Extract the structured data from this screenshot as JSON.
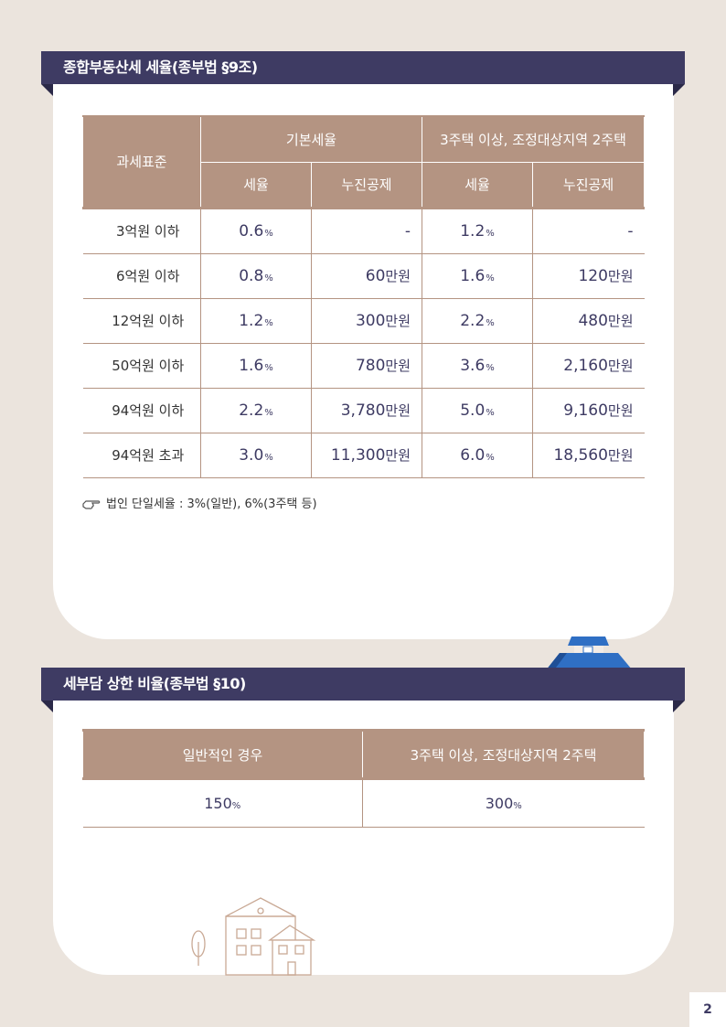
{
  "section1": {
    "title": "종합부동산세 세율(종부법 §9조)",
    "headers": {
      "tax_base": "과세표준",
      "basic_rate": "기본세율",
      "multi_home": "3주택 이상, 조정대상지역 2주택",
      "rate": "세율",
      "deduction": "누진공제"
    },
    "rows": [
      {
        "label": "3억원 이하",
        "r1": "0.6",
        "d1": "-",
        "r2": "1.2",
        "d2": "-"
      },
      {
        "label": "6억원 이하",
        "r1": "0.8",
        "d1": "60",
        "r2": "1.6",
        "d2": "120"
      },
      {
        "label": "12억원 이하",
        "r1": "1.2",
        "d1": "300",
        "r2": "2.2",
        "d2": "480"
      },
      {
        "label": "50억원 이하",
        "r1": "1.6",
        "d1": "780",
        "r2": "3.6",
        "d2": "2,160"
      },
      {
        "label": "94억원 이하",
        "r1": "2.2",
        "d1": "3,780",
        "r2": "5.0",
        "d2": "9,160"
      },
      {
        "label": "94억원 초과",
        "r1": "3.0",
        "d1": "11,300",
        "r2": "6.0",
        "d2": "18,560"
      }
    ],
    "pct_symbol": "%",
    "unit": "만원",
    "note": "법인 단일세율 : 3%(일반), 6%(3주택 등)"
  },
  "section2": {
    "title": "세부담 상한 비율(종부법 §10)",
    "headers": {
      "general": "일반적인 경우",
      "multi_home": "3주택 이상, 조정대상지역 2주택"
    },
    "values": {
      "general": "150",
      "multi_home": "300"
    },
    "pct_symbol": "%"
  },
  "page_number": "2",
  "colors": {
    "navy": "#3e3b63",
    "tan": "#b49482",
    "background": "#ebe4dd"
  }
}
